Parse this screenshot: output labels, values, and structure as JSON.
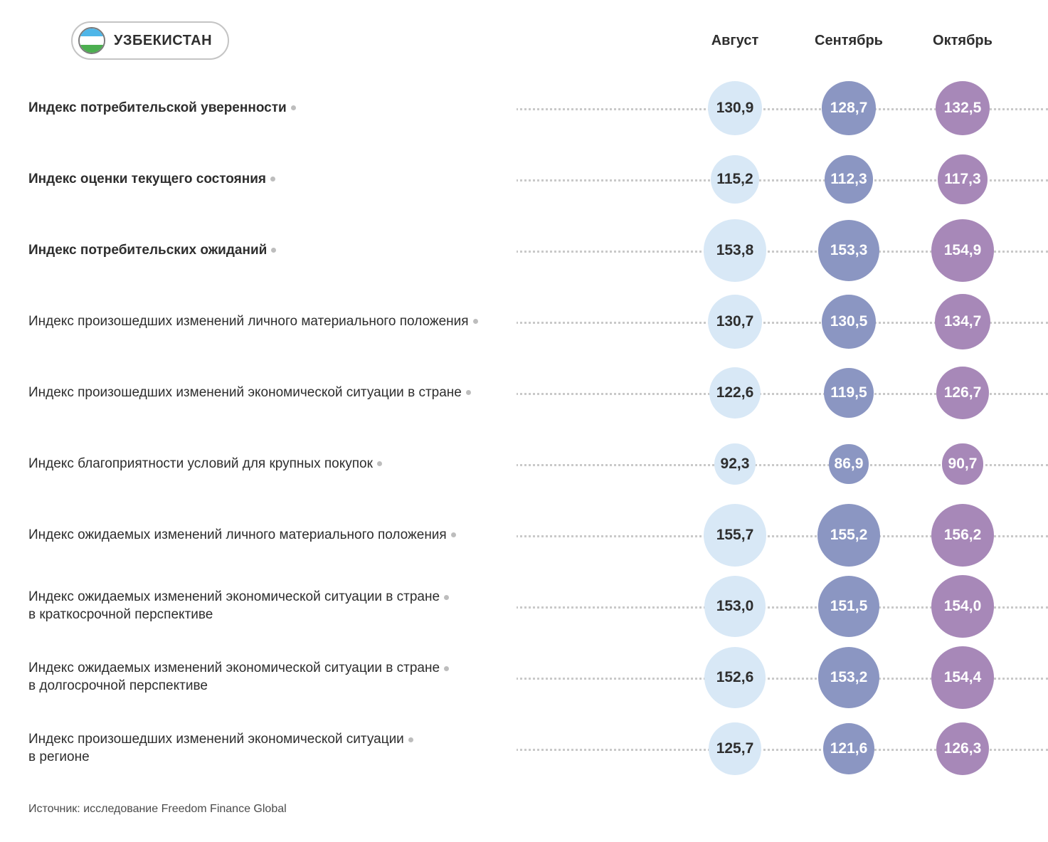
{
  "country": {
    "name": "УЗБЕКИСТАН",
    "flag_top_color": "#4fb6e8",
    "flag_mid_color": "#ffffff",
    "flag_bot_color": "#4caf50"
  },
  "months": [
    {
      "label": "Август",
      "bubble_fill": "#d8e8f6",
      "bubble_text": "#2e2e2e"
    },
    {
      "label": "Сентябрь",
      "bubble_fill": "#8b96c2",
      "bubble_text": "#ffffff"
    },
    {
      "label": "Октябрь",
      "bubble_fill": "#a788b8",
      "bubble_text": "#ffffff"
    }
  ],
  "dot_line_color": "#c9c9c9",
  "bubble_min_d": 52,
  "bubble_max_d": 90,
  "value_min": 80,
  "value_max": 160,
  "rows": [
    {
      "label": "Индекс потребительской уверенности",
      "bold": true,
      "values": [
        "130,9",
        "128,7",
        "132,5"
      ],
      "nums": [
        130.9,
        128.7,
        132.5
      ]
    },
    {
      "label": "Индекс оценки текущего состояния",
      "bold": true,
      "values": [
        "115,2",
        "112,3",
        "117,3"
      ],
      "nums": [
        115.2,
        112.3,
        117.3
      ]
    },
    {
      "label": "Индекс потребительских ожиданий",
      "bold": true,
      "values": [
        "153,8",
        "153,3",
        "154,9"
      ],
      "nums": [
        153.8,
        153.3,
        154.9
      ]
    },
    {
      "label": "Индекс произошедших изменений личного материального положения",
      "bold": false,
      "values": [
        "130,7",
        "130,5",
        "134,7"
      ],
      "nums": [
        130.7,
        130.5,
        134.7
      ]
    },
    {
      "label": "Индекс произошедших изменений экономической ситуации в стране",
      "bold": false,
      "values": [
        "122,6",
        "119,5",
        "126,7"
      ],
      "nums": [
        122.6,
        119.5,
        126.7
      ]
    },
    {
      "label": "Индекс благоприятности условий для крупных покупок",
      "bold": false,
      "values": [
        "92,3",
        "86,9",
        "90,7"
      ],
      "nums": [
        92.3,
        86.9,
        90.7
      ]
    },
    {
      "label": "Индекс ожидаемых изменений личного материального положения",
      "bold": false,
      "values": [
        "155,7",
        "155,2",
        "156,2"
      ],
      "nums": [
        155.7,
        155.2,
        156.2
      ]
    },
    {
      "label": "Индекс ожидаемых изменений экономической ситуации в стране\nв краткосрочной перспективе",
      "bold": false,
      "values": [
        "153,0",
        "151,5",
        "154,0"
      ],
      "nums": [
        153.0,
        151.5,
        154.0
      ]
    },
    {
      "label": "Индекс ожидаемых изменений экономической ситуации в стране\nв долгосрочной перспективе",
      "bold": false,
      "values": [
        "152,6",
        "153,2",
        "154,4"
      ],
      "nums": [
        152.6,
        153.2,
        154.4
      ]
    },
    {
      "label": "Индекс произошедших изменений экономической ситуации\nв регионе",
      "bold": false,
      "values": [
        "125,7",
        "121,6",
        "126,3"
      ],
      "nums": [
        125.7,
        121.6,
        126.3
      ]
    }
  ],
  "source": "Источник: исследование Freedom Finance Global"
}
